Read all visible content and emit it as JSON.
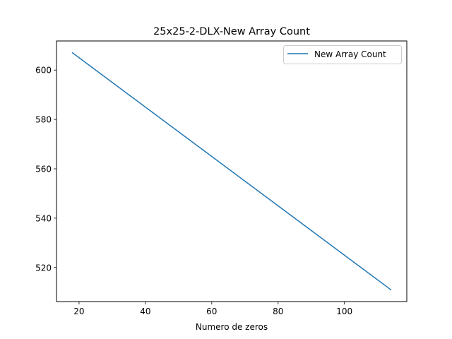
{
  "chart_data": {
    "type": "line",
    "title": "25x25-2-DLX-New Array Count",
    "xlabel": "Numero de zeros",
    "ylabel": "",
    "xlim": [
      13.2,
      118.8
    ],
    "ylim": [
      506.2,
      611.8
    ],
    "xticks": [
      20,
      40,
      60,
      80,
      100
    ],
    "yticks": [
      520,
      540,
      560,
      580,
      600
    ],
    "grid": false,
    "legend_position": "top-right",
    "series": [
      {
        "name": "New Array Count",
        "color": "#1f77b4",
        "x": [
          18,
          114
        ],
        "y": [
          607,
          511
        ]
      }
    ]
  }
}
